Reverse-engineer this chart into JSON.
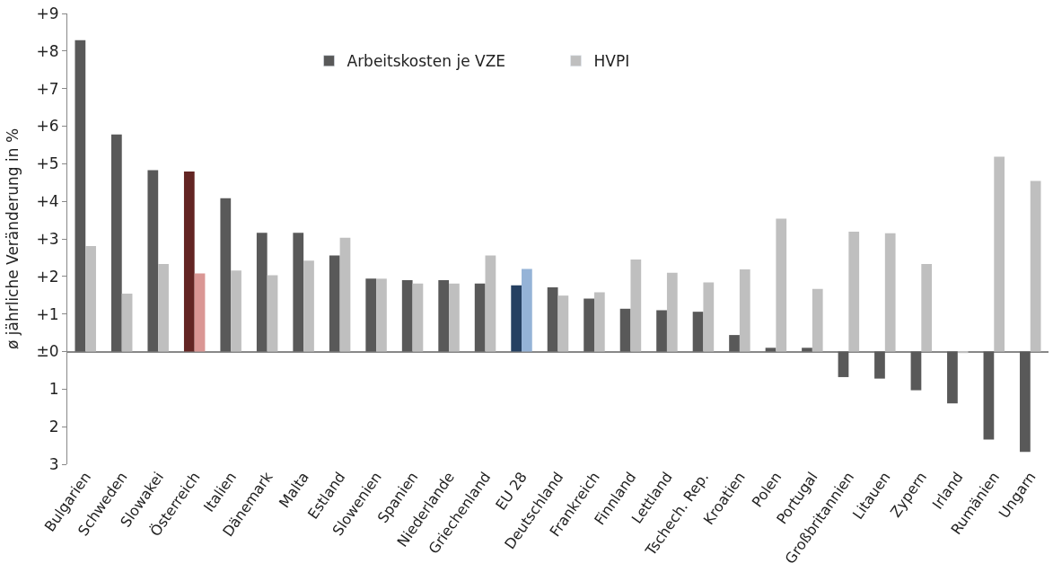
{
  "chart_data": {
    "type": "bar",
    "ylabel": "ø jährliche Veränderung in %",
    "categories": [
      "Bulgarien",
      "Schweden",
      "Slowakei",
      "Österreich",
      "Italien",
      "Dänemark",
      "Malta",
      "Estland",
      "Slowenien",
      "Spanien",
      "Niederlande",
      "Griechenland",
      "EU 28",
      "Deutschland",
      "Frankreich",
      "Finnland",
      "Lettland",
      "Tschech. Rep.",
      "Kroatien",
      "Polen",
      "Portugal",
      "Großbritannien",
      "Litauen",
      "Zypern",
      "Irland",
      "Rumänien",
      "Ungarn"
    ],
    "series": [
      {
        "name": "Arbeitskosten je VZE",
        "color": "#595959",
        "colors": [
          "#595959",
          "#595959",
          "#595959",
          "#632523",
          "#595959",
          "#595959",
          "#595959",
          "#595959",
          "#595959",
          "#595959",
          "#595959",
          "#595959",
          "#254061",
          "#595959",
          "#595959",
          "#595959",
          "#595959",
          "#595959",
          "#595959",
          "#595959",
          "#595959",
          "#595959",
          "#595959",
          "#595959",
          "#595959",
          "#595959",
          "#595959"
        ],
        "values": [
          8.29,
          5.78,
          4.83,
          4.79,
          4.08,
          3.16,
          3.16,
          2.56,
          1.94,
          1.9,
          1.9,
          1.81,
          1.76,
          1.71,
          1.41,
          1.14,
          1.1,
          1.06,
          0.44,
          0.1,
          0.1,
          -0.68,
          -0.72,
          -1.03,
          -1.38,
          -2.34,
          -2.67
        ]
      },
      {
        "name": "HVPI",
        "color": "#bfbfbf",
        "colors": [
          "#bfbfbf",
          "#bfbfbf",
          "#bfbfbf",
          "#da9694",
          "#bfbfbf",
          "#bfbfbf",
          "#bfbfbf",
          "#bfbfbf",
          "#bfbfbf",
          "#bfbfbf",
          "#bfbfbf",
          "#bfbfbf",
          "#95b3d7",
          "#bfbfbf",
          "#bfbfbf",
          "#bfbfbf",
          "#bfbfbf",
          "#bfbfbf",
          "#bfbfbf",
          "#bfbfbf",
          "#bfbfbf",
          "#bfbfbf",
          "#bfbfbf",
          "#bfbfbf",
          "#bfbfbf",
          "#bfbfbf",
          "#bfbfbf"
        ],
        "values": [
          2.81,
          1.54,
          2.33,
          2.08,
          2.16,
          2.03,
          2.42,
          3.03,
          1.94,
          1.81,
          1.81,
          2.56,
          2.2,
          1.49,
          1.58,
          2.45,
          2.1,
          1.84,
          2.19,
          3.54,
          1.67,
          3.19,
          3.15,
          2.33,
          -0.04,
          5.19,
          4.54
        ]
      }
    ],
    "ylim": [
      -3,
      9
    ],
    "yticks": [
      {
        "value": 9,
        "label": "+9"
      },
      {
        "value": 8,
        "label": "+8"
      },
      {
        "value": 7,
        "label": "+7"
      },
      {
        "value": 6,
        "label": "+6"
      },
      {
        "value": 5,
        "label": "+5"
      },
      {
        "value": 4,
        "label": "+4"
      },
      {
        "value": 3,
        "label": "+3"
      },
      {
        "value": 2,
        "label": "+2"
      },
      {
        "value": 1,
        "label": "+1"
      },
      {
        "value": 0,
        "label": "±0"
      },
      {
        "value": -1,
        "label": "1"
      },
      {
        "value": -2,
        "label": "2"
      },
      {
        "value": -3,
        "label": "3"
      }
    ],
    "legend": "top"
  }
}
